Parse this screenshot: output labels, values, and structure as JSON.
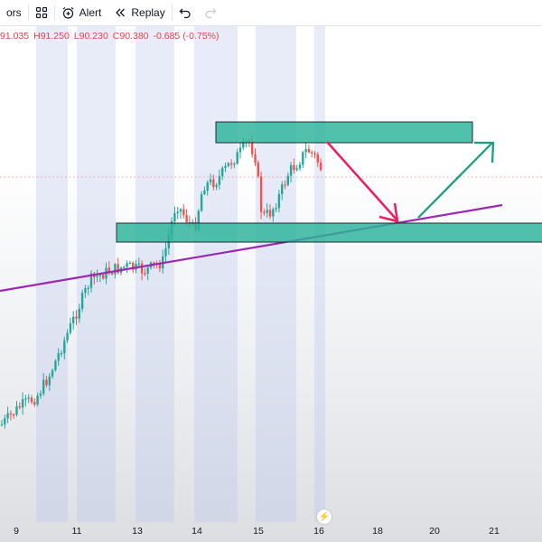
{
  "toolbar": {
    "indicators_label": "ors",
    "alert_label": "Alert",
    "replay_label": "Replay",
    "icons": [
      "layout-grid-icon",
      "alarm-clock-plus-icon",
      "replay-icon",
      "undo-icon",
      "redo-icon"
    ]
  },
  "legend": {
    "open": "91.035",
    "high": "H91.250",
    "low": "L90.230",
    "close": "C90.380",
    "change": "-0.685 (-0.75%)",
    "color": "#e6414a"
  },
  "chart_data": {
    "type": "candlestick",
    "x_axis": {
      "ticks": [
        "9",
        "11",
        "13",
        "14",
        "15",
        "16",
        "18",
        "20",
        "21"
      ]
    },
    "colors": {
      "up": "#26a69a",
      "down": "#ef5350",
      "zones": "#2bb39a",
      "trendline": "#9c27b0",
      "arrow_down": "#e91e63",
      "arrow_up": "#1a9e7d",
      "session_bands": "#b9c4ec"
    },
    "annotations": [
      "resistance-zone",
      "support-zone",
      "rising-trendline",
      "projected-drop-arrow",
      "projected-rebound-arrow"
    ]
  }
}
